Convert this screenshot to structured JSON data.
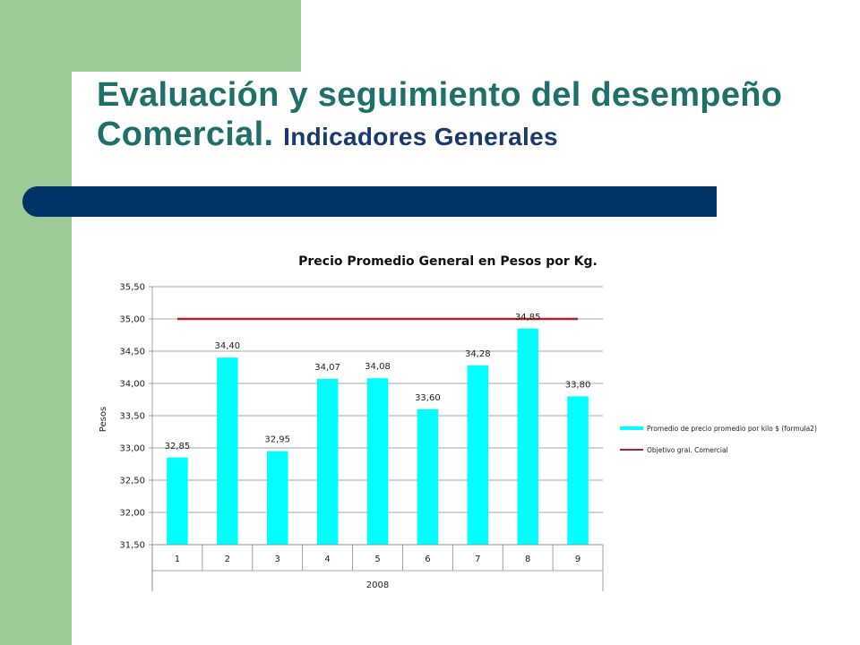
{
  "slide": {
    "title_main": "Evaluación y seguimiento del desempeño Comercial.",
    "title_sub": "Indicadores Generales"
  },
  "colors": {
    "green": "#9ccc95",
    "navy": "#003366",
    "title": "#1f6f6b",
    "bar": "#00ffff",
    "target_line": "#b22222"
  },
  "chart_data": {
    "type": "bar",
    "title": "Precio Promedio General en Pesos por Kg.",
    "ylabel": "Pesos",
    "xlabel": "2008",
    "ylim": [
      31.5,
      35.5
    ],
    "yticks": [
      "31,50",
      "32,00",
      "32,50",
      "33,00",
      "33,50",
      "34,00",
      "34,50",
      "35,00",
      "35,50"
    ],
    "categories": [
      "1",
      "2",
      "3",
      "4",
      "5",
      "6",
      "7",
      "8",
      "9"
    ],
    "series": [
      {
        "name": "Promedio de precio promedio por kilo $ (formula2)",
        "type": "bar",
        "values": [
          32.85,
          34.4,
          32.95,
          34.07,
          34.08,
          33.6,
          34.28,
          34.85,
          33.8
        ],
        "labels": [
          "32,85",
          "34,40",
          "32,95",
          "34,07",
          "34,08",
          "33,60",
          "34,28",
          "34,85",
          "33,80"
        ]
      },
      {
        "name": "Objetivo gral. Comercial",
        "type": "line",
        "values": [
          35.0,
          35.0,
          35.0,
          35.0,
          35.0,
          35.0,
          35.0,
          35.0,
          35.0
        ]
      }
    ],
    "grid": true,
    "legend_position": "right"
  }
}
